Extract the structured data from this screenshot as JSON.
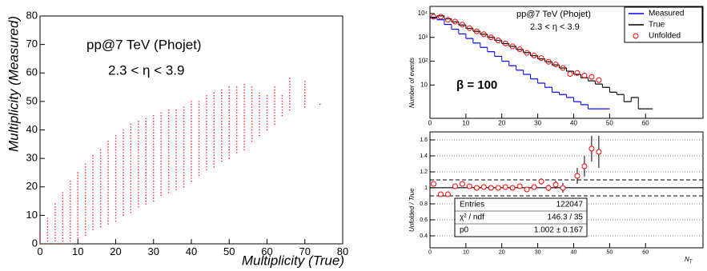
{
  "chart_data": [
    {
      "type": "scatter",
      "annotations": [
        "pp@7 TeV (Phojet)",
        "2.3 < η < 3.9"
      ],
      "x_label": "Multiplicity (True)",
      "y_label": "Multiplicity (Measured)",
      "color": "#ff0000",
      "x": [
        0,
        2,
        4,
        6,
        8,
        10,
        12,
        14,
        16,
        18,
        20,
        22,
        24,
        26,
        28,
        30,
        32,
        34,
        36,
        38,
        40,
        42,
        44,
        46,
        48,
        50,
        52,
        54,
        56,
        58,
        60,
        62,
        64,
        66,
        70,
        74
      ],
      "ymin": [
        0,
        0,
        0,
        0,
        1,
        2,
        3,
        5,
        6,
        7,
        8,
        10,
        11,
        13,
        14,
        15,
        17,
        18,
        19,
        20,
        22,
        24,
        26,
        27,
        29,
        30,
        32,
        33,
        36,
        38,
        40,
        42,
        45,
        47,
        48,
        49
      ],
      "ymax": [
        4,
        9,
        14,
        18,
        22,
        25,
        28,
        31,
        33,
        36,
        38,
        40,
        42,
        43,
        44,
        45,
        46,
        47,
        47,
        48,
        50,
        50,
        52,
        53,
        54,
        55,
        55,
        56,
        55,
        53,
        52,
        55,
        52,
        58,
        57,
        49
      ],
      "xlim": [
        0,
        80
      ],
      "ylim": [
        0,
        80
      ],
      "xticks": [
        0,
        10,
        20,
        30,
        40,
        50,
        60,
        70,
        80
      ],
      "yticks": [
        0,
        10,
        20,
        30,
        40,
        50,
        60,
        70,
        80
      ]
    },
    {
      "type": "histogram",
      "annotations": [
        "pp@7 TeV (Phojet)",
        "2.3 < η < 3.9",
        "β = 100"
      ],
      "y_label": "Number of events",
      "log_y": true,
      "legend": "top-right",
      "bins": [
        0,
        2,
        4,
        6,
        8,
        10,
        12,
        14,
        16,
        18,
        20,
        22,
        24,
        26,
        28,
        30,
        32,
        34,
        36,
        38,
        40,
        42,
        44,
        46,
        48,
        50,
        52,
        54,
        56,
        58,
        60,
        62
      ],
      "series": [
        {
          "name": "Measured",
          "color": "#0000ff",
          "style": "step",
          "values": [
            6500,
            5500,
            3500,
            2200,
            1400,
            900,
            580,
            380,
            250,
            160,
            100,
            65,
            42,
            28,
            18,
            12,
            8,
            5,
            4,
            3,
            2,
            1.5,
            1,
            1,
            1,
            null,
            null,
            null,
            null,
            null,
            null
          ]
        },
        {
          "name": "True",
          "color": "#000000",
          "style": "step",
          "values": [
            7000,
            8000,
            6000,
            4500,
            3300,
            2400,
            1800,
            1350,
            1000,
            750,
            550,
            420,
            310,
            230,
            170,
            125,
            95,
            70,
            52,
            38,
            28,
            20,
            15,
            11,
            8,
            5,
            4,
            2,
            3,
            1,
            1
          ]
        },
        {
          "name": "Unfolded",
          "color": "#ff0000",
          "style": "marker",
          "values": [
            7300,
            7400,
            5500,
            4600,
            3450,
            2450,
            1800,
            1360,
            1000,
            750,
            555,
            420,
            316,
            225,
            172,
            135,
            95,
            73,
            52,
            29,
            32,
            25,
            22,
            16,
            null,
            null,
            null,
            null,
            null,
            null,
            null
          ]
        }
      ],
      "xlim": [
        0,
        76
      ],
      "ylim": [
        0.4,
        20000
      ],
      "xticks": [
        0,
        10,
        20,
        30,
        40,
        50,
        60
      ],
      "yticks": [
        10,
        {
          "value": 100,
          "label": "10²"
        },
        {
          "value": 1000,
          "label": "10³"
        },
        {
          "value": 10000,
          "label": "10⁴"
        }
      ]
    },
    {
      "type": "errorbar",
      "y_label": "Unfolded / True",
      "x_label": "N",
      "x_label_sub": "T",
      "color": "#ff0000",
      "x": [
        1,
        3,
        5,
        7,
        9,
        11,
        13,
        15,
        17,
        19,
        21,
        23,
        25,
        27,
        29,
        31,
        33,
        35,
        37,
        39,
        41,
        43,
        45,
        47
      ],
      "values": [
        1.05,
        0.92,
        0.92,
        1.02,
        1.05,
        1.02,
        1.0,
        1.01,
        1.0,
        1.0,
        1.01,
        1.0,
        1.02,
        0.98,
        1.01,
        1.08,
        1.0,
        1.04,
        1.0,
        0.76,
        1.15,
        1.27,
        1.49,
        1.45
      ],
      "errors": [
        0.01,
        0.01,
        0.01,
        0.01,
        0.01,
        0.01,
        0.01,
        0.01,
        0.01,
        0.01,
        0.02,
        0.02,
        0.02,
        0.03,
        0.03,
        0.04,
        0.04,
        0.05,
        0.06,
        0.08,
        0.1,
        0.13,
        0.16,
        0.2
      ],
      "fit_value": 1.002,
      "ref_lines": [
        0.9,
        1.1
      ],
      "stats": [
        [
          "Entries",
          "122047"
        ],
        [
          "χ² / ndf",
          "146.3 / 35"
        ],
        [
          "p0",
          "1.002 ± 0.167"
        ]
      ],
      "xlim": [
        0,
        76
      ],
      "ylim": [
        0.25,
        1.7
      ],
      "xticks": [
        0,
        10,
        20,
        30,
        40,
        50,
        60
      ],
      "yticks": [
        0.4,
        0.6,
        0.8,
        1,
        1.2,
        1.4,
        1.6
      ]
    }
  ]
}
